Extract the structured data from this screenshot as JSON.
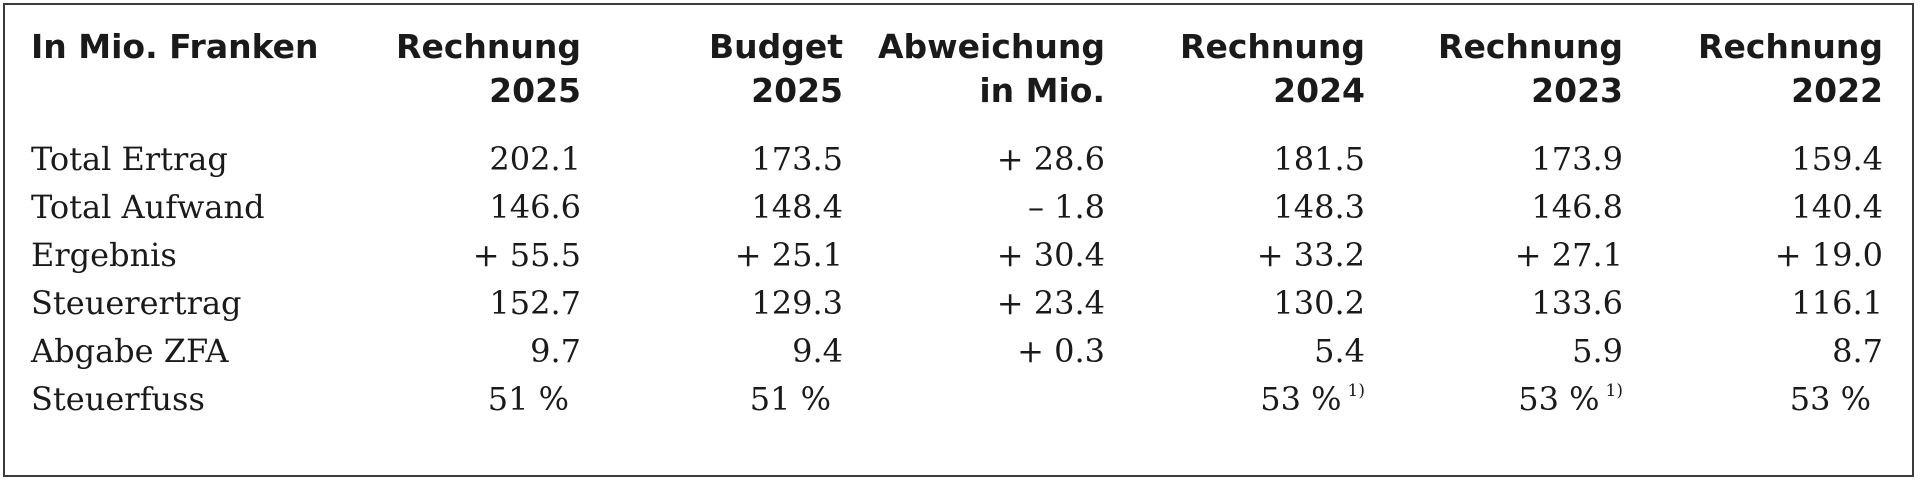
{
  "table": {
    "header": [
      {
        "line1": "In Mio. Franken",
        "line2": ""
      },
      {
        "line1": "Rechnung",
        "line2": "2025"
      },
      {
        "line1": "Budget",
        "line2": "2025"
      },
      {
        "line1": "Abweichung",
        "line2": "in Mio."
      },
      {
        "line1": "Rechnung",
        "line2": "2024"
      },
      {
        "line1": "Rechnung",
        "line2": "2023"
      },
      {
        "line1": "Rechnung",
        "line2": "2022"
      }
    ],
    "rows": [
      {
        "label": "Total Ertrag",
        "values": [
          "202.1",
          "173.5",
          "+ 28.6",
          "181.5",
          "173.9",
          "159.4"
        ]
      },
      {
        "label": "Total Aufwand",
        "values": [
          "146.6",
          "148.4",
          "– 1.8",
          "148.3",
          "146.8",
          "140.4"
        ]
      },
      {
        "label": "Ergebnis",
        "values": [
          "+ 55.5",
          "+ 25.1",
          "+ 30.4",
          "+ 33.2",
          "+ 27.1",
          "+ 19.0"
        ]
      },
      {
        "label": "Steuerertrag",
        "values": [
          "152.7",
          "129.3",
          "+ 23.4",
          "130.2",
          "133.6",
          "116.1"
        ]
      },
      {
        "label": "Abgabe ZFA",
        "values": [
          "9.7",
          "9.4",
          "+ 0.3",
          "5.4",
          "5.9",
          "8.7"
        ]
      },
      {
        "label": "Steuerfuss",
        "values": [
          "51 %",
          "51 %",
          "",
          "53 %",
          "53 %",
          "53 %"
        ],
        "footnotes": [
          "",
          "",
          "",
          "1)",
          "1)",
          ""
        ]
      }
    ]
  }
}
